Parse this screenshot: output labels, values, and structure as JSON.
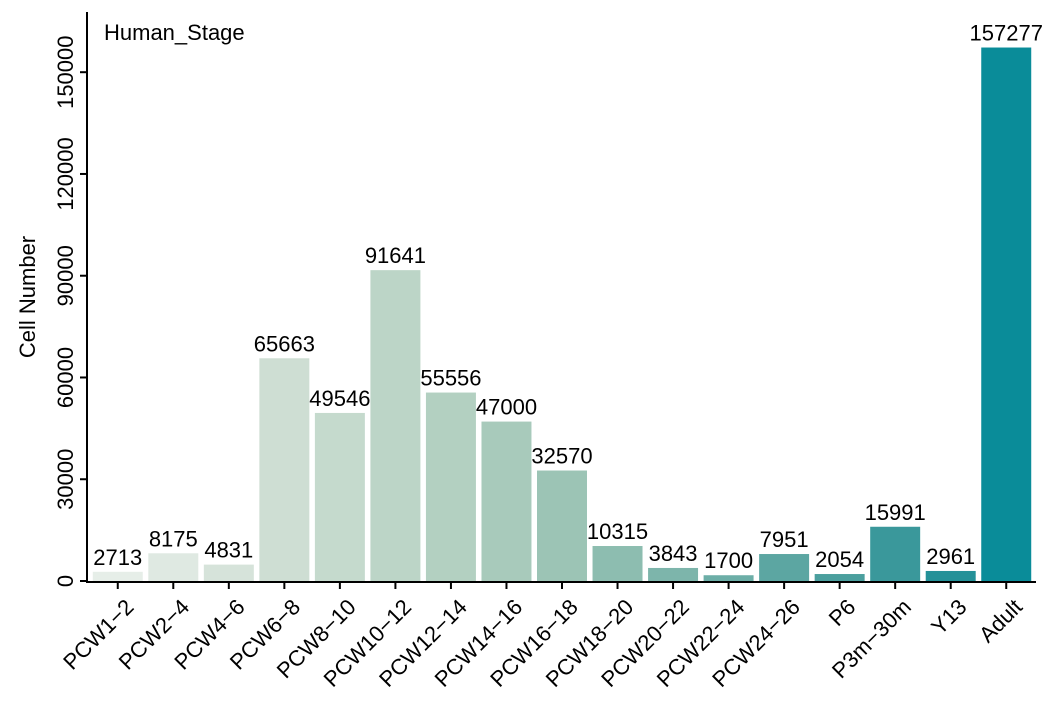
{
  "chart_data": {
    "type": "bar",
    "title": "Human_Stage",
    "ylabel": "Cell Number",
    "xlabel": "",
    "ylim": [
      0,
      160000
    ],
    "yticks": [
      0,
      30000,
      60000,
      90000,
      120000,
      150000
    ],
    "grid": false,
    "categories": [
      "PCW1−2",
      "PCW2−4",
      "PCW4−6",
      "PCW6−8",
      "PCW8−10",
      "PCW10−12",
      "PCW12−14",
      "PCW14−16",
      "PCW16−18",
      "PCW18−20",
      "PCW20−22",
      "PCW22−24",
      "PCW24−26",
      "P6",
      "P3m−30m",
      "Y13",
      "Adult"
    ],
    "values": [
      2713,
      8175,
      4831,
      65663,
      49546,
      91641,
      55556,
      47000,
      32570,
      10315,
      3843,
      1700,
      7951,
      2054,
      15991,
      2961,
      157277
    ],
    "colors": [
      "#e6eee8",
      "#dfe9e2",
      "#d6e3da",
      "#ceded3",
      "#c5dacd",
      "#bcd5c7",
      "#b3d0c1",
      "#a8cabb",
      "#9cc4b5",
      "#8dbdb0",
      "#7db5ab",
      "#6caea7",
      "#5ca6a2",
      "#4b9f9e",
      "#3a989b",
      "#249198",
      "#0a8c99"
    ]
  }
}
